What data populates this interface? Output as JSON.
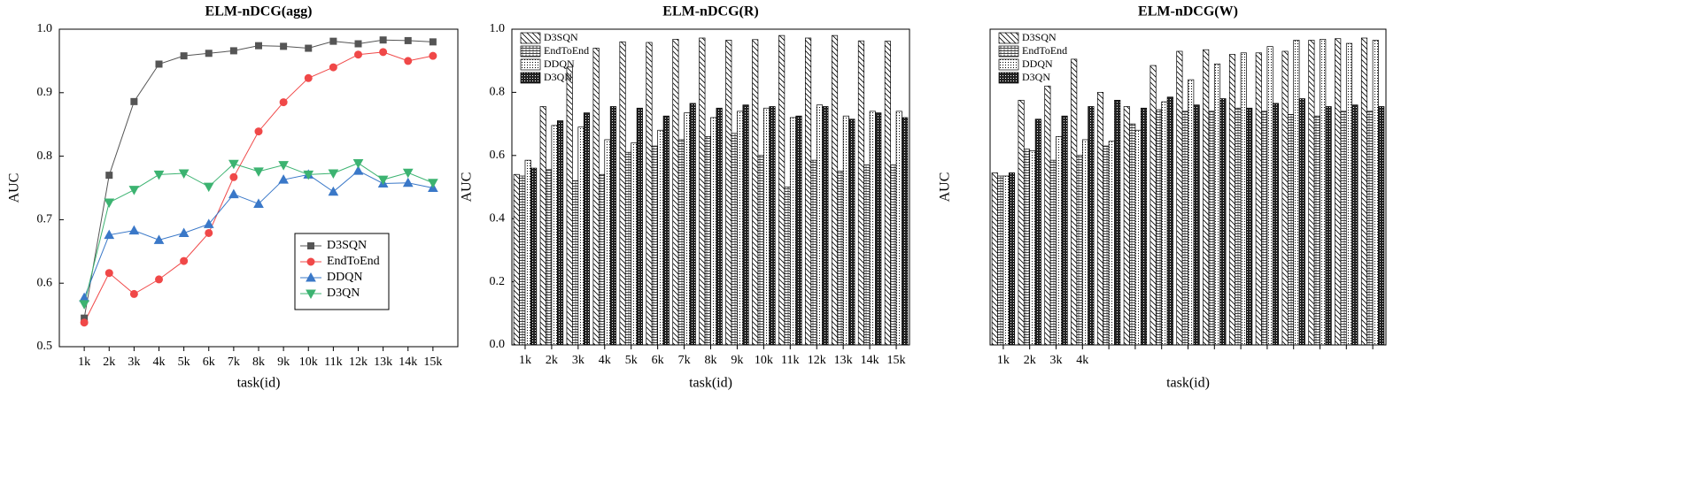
{
  "chart_data": [
    {
      "type": "line",
      "title": "ELM-nDCG(agg)",
      "x_label": "task(id)",
      "y_label": "AUC",
      "categories": [
        "1k",
        "2k",
        "3k",
        "4k",
        "5k",
        "6k",
        "7k",
        "8k",
        "9k",
        "10k",
        "11k",
        "12k",
        "13k",
        "14k",
        "15k"
      ],
      "ylim": [
        0.5,
        1.0
      ],
      "yticks": [
        0.5,
        0.6,
        0.7,
        0.8,
        0.9,
        {
          "value": 1.0,
          "label": "1.0"
        }
      ],
      "legend": "lower right",
      "series": [
        {
          "name": "D3SQN",
          "color": "#555555",
          "marker": "square",
          "values": [
            0.545,
            0.77,
            0.886,
            0.945,
            0.958,
            0.962,
            0.966,
            0.974,
            0.973,
            0.97,
            0.981,
            0.977,
            0.983,
            0.982,
            0.98
          ]
        },
        {
          "name": "EndToEnd",
          "color": "#f04848",
          "marker": "circle",
          "values": [
            0.538,
            0.616,
            0.583,
            0.606,
            0.635,
            0.679,
            0.767,
            0.839,
            0.885,
            0.923,
            0.94,
            0.96,
            0.964,
            0.95,
            0.958
          ]
        },
        {
          "name": "DDQN",
          "color": "#3a78c8",
          "marker": "triangle-up",
          "values": [
            0.577,
            0.676,
            0.683,
            0.668,
            0.679,
            0.693,
            0.74,
            0.725,
            0.763,
            0.771,
            0.744,
            0.777,
            0.757,
            0.758,
            0.75
          ]
        },
        {
          "name": "D3QN",
          "color": "#3cb371",
          "marker": "triangle-down",
          "values": [
            0.567,
            0.727,
            0.747,
            0.771,
            0.773,
            0.752,
            0.788,
            0.776,
            0.786,
            0.771,
            0.773,
            0.789,
            0.763,
            0.774,
            0.758
          ]
        }
      ]
    },
    {
      "type": "bar",
      "title": "ELM-nDCG(R)",
      "x_label": "task(id)",
      "y_label": "AUC",
      "categories": [
        "1k",
        "2k",
        "3k",
        "4k",
        "5k",
        "6k",
        "7k",
        "8k",
        "9k",
        "10k",
        "11k",
        "12k",
        "13k",
        "14k",
        "15k"
      ],
      "ylim": [
        0,
        1.0
      ],
      "yticks": [
        {
          "value": 0,
          "label": "0.0"
        },
        0.2,
        0.4,
        0.6,
        0.8,
        {
          "value": 1.0,
          "label": "1.0"
        }
      ],
      "legend": "upper left",
      "series": [
        {
          "name": "D3SQN",
          "pattern": "diagonal",
          "values": [
            0.54,
            0.755,
            0.88,
            0.94,
            0.96,
            0.958,
            0.968,
            0.972,
            0.965,
            0.967,
            0.98,
            0.972,
            0.98,
            0.963,
            0.962
          ]
        },
        {
          "name": "EndToEnd",
          "pattern": "grid",
          "values": [
            0.535,
            0.555,
            0.52,
            0.54,
            0.61,
            0.63,
            0.65,
            0.66,
            0.67,
            0.6,
            0.5,
            0.585,
            0.55,
            0.57,
            0.57
          ]
        },
        {
          "name": "DDQN",
          "pattern": "dots",
          "values": [
            0.585,
            0.695,
            0.69,
            0.65,
            0.64,
            0.68,
            0.735,
            0.72,
            0.74,
            0.75,
            0.72,
            0.76,
            0.725,
            0.74,
            0.74
          ]
        },
        {
          "name": "D3QN",
          "pattern": "checker",
          "values": [
            0.56,
            0.71,
            0.735,
            0.755,
            0.75,
            0.725,
            0.765,
            0.75,
            0.76,
            0.755,
            0.725,
            0.755,
            0.715,
            0.735,
            0.72
          ]
        }
      ]
    },
    {
      "type": "bar",
      "title": "ELM-nDCG(W)",
      "x_label": "task(id)",
      "y_label": "AUC",
      "categories": [
        "1k",
        "2k",
        "3k",
        "4k",
        null,
        null,
        null,
        null,
        null,
        null,
        null,
        null,
        null,
        null,
        null
      ],
      "ylim": [
        0,
        1.0
      ],
      "legend": "upper left",
      "series": [
        {
          "name": "D3SQN",
          "pattern": "diagonal",
          "values": [
            0.545,
            0.775,
            0.82,
            0.905,
            0.8,
            0.755,
            0.885,
            0.93,
            0.935,
            0.92,
            0.925,
            0.93,
            0.965,
            0.97,
            0.972
          ]
        },
        {
          "name": "EndToEnd",
          "pattern": "grid",
          "values": [
            0.535,
            0.62,
            0.585,
            0.6,
            0.63,
            0.7,
            0.745,
            0.74,
            0.74,
            0.75,
            0.74,
            0.73,
            0.725,
            0.74,
            0.74
          ]
        },
        {
          "name": "DDQN",
          "pattern": "dots",
          "values": [
            0.535,
            0.615,
            0.66,
            0.65,
            0.645,
            0.68,
            0.77,
            0.84,
            0.89,
            0.925,
            0.945,
            0.965,
            0.968,
            0.955,
            0.965
          ]
        },
        {
          "name": "D3QN",
          "pattern": "checker",
          "values": [
            0.545,
            0.715,
            0.725,
            0.755,
            0.775,
            0.75,
            0.785,
            0.76,
            0.78,
            0.75,
            0.765,
            0.78,
            0.755,
            0.76,
            0.755
          ]
        }
      ]
    }
  ]
}
